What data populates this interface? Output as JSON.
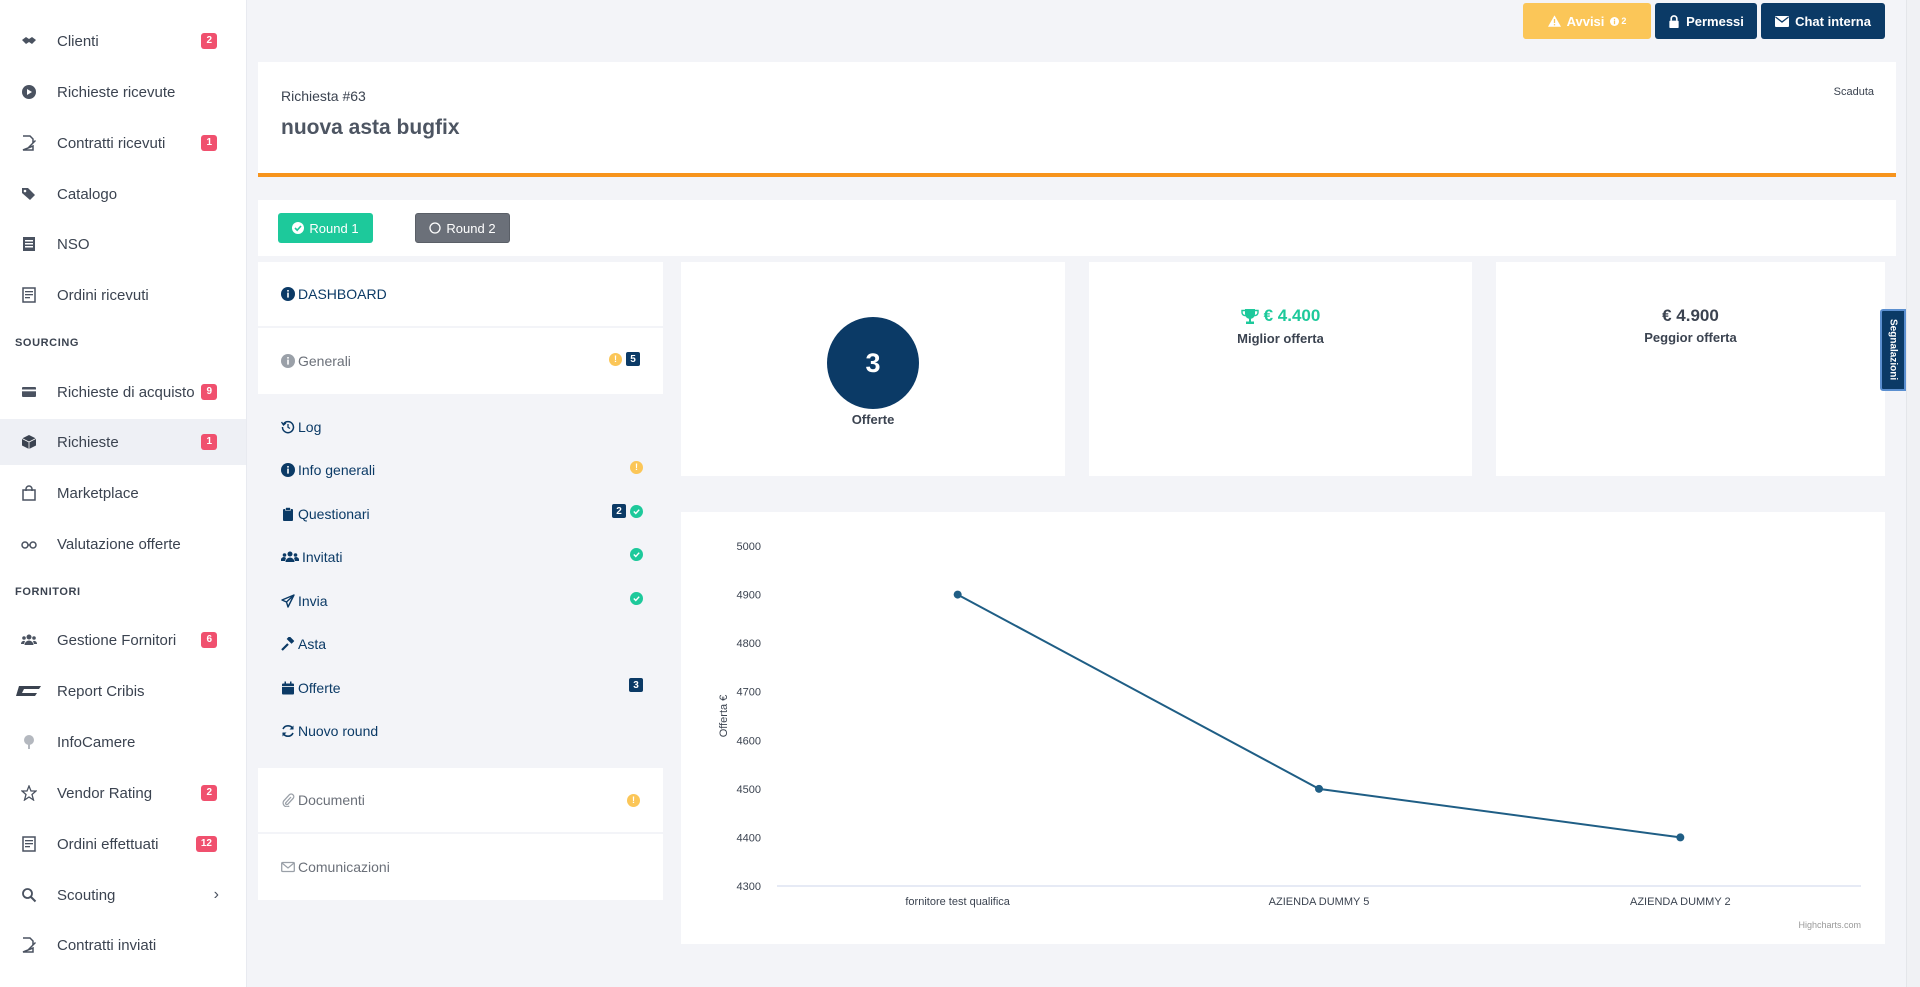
{
  "sidebar": {
    "items": [
      {
        "label": "Clienti",
        "icon": "handshake-icon",
        "badge": "2"
      },
      {
        "label": "Richieste ricevute",
        "icon": "play-circle-icon",
        "badge": ""
      },
      {
        "label": "Contratti ricevuti",
        "icon": "file-signature-icon",
        "badge": "1"
      },
      {
        "label": "Catalogo",
        "icon": "tags-icon",
        "badge": ""
      },
      {
        "label": "NSO",
        "icon": "list-icon",
        "badge": ""
      },
      {
        "label": "Ordini ricevuti",
        "icon": "receipt-icon",
        "badge": ""
      },
      {
        "label": "Richieste di acquisto",
        "icon": "credit-card-icon",
        "badge": "9"
      },
      {
        "label": "Richieste",
        "icon": "cube-icon",
        "badge": "1"
      },
      {
        "label": "Marketplace",
        "icon": "shopping-bag-icon",
        "badge": ""
      },
      {
        "label": "Valutazione offerte",
        "icon": "glasses-icon",
        "badge": ""
      },
      {
        "label": "Gestione Fornitori",
        "icon": "users-icon",
        "badge": "6"
      },
      {
        "label": "Report Cribis",
        "icon": "cribis-logo-icon",
        "badge": ""
      },
      {
        "label": "InfoCamere",
        "icon": "tree-icon",
        "badge": ""
      },
      {
        "label": "Vendor Rating",
        "icon": "star-icon",
        "badge": "2"
      },
      {
        "label": "Ordini effettuati",
        "icon": "receipt-icon",
        "badge": "12"
      },
      {
        "label": "Scouting",
        "icon": "search-icon",
        "badge": ""
      },
      {
        "label": "Contratti inviati",
        "icon": "file-signature-icon",
        "badge": ""
      }
    ],
    "sections": [
      "SOURCING",
      "FORNITORI"
    ]
  },
  "topbar": {
    "avvisi_label": "Avvisi",
    "avvisi_count": "2",
    "permessi_label": "Permessi",
    "chat_label": "Chat interna"
  },
  "header": {
    "request_number": "Richiesta #63",
    "title": "nuova asta bugfix",
    "status": "Scaduta"
  },
  "rounds": {
    "round1": "Round 1",
    "round2": "Round 2"
  },
  "leftpanel": {
    "dashboard": "DASHBOARD",
    "generali": "Generali",
    "generali_badge": "5",
    "items": [
      {
        "label": "Log"
      },
      {
        "label": "Info generali"
      },
      {
        "label": "Questionari",
        "badge": "2"
      },
      {
        "label": "Invitati"
      },
      {
        "label": "Invia"
      },
      {
        "label": "Asta"
      },
      {
        "label": "Offerte",
        "badge": "3"
      },
      {
        "label": "Nuovo round"
      }
    ],
    "documenti": "Documenti",
    "comunicazioni": "Comunicazioni"
  },
  "stats": {
    "offers_count": "3",
    "offers_label": "Offerte",
    "best_value": "€ 4.400",
    "best_label": "Miglior offerta",
    "worst_value": "€ 4.900",
    "worst_label": "Peggior offerta"
  },
  "chart_data": {
    "type": "line",
    "categories": [
      "fornitore test qualifica",
      "AZIENDA DUMMY 5",
      "AZIENDA DUMMY 2"
    ],
    "values": [
      4900,
      4500,
      4400
    ],
    "ylabel": "Offerta €",
    "ylim": [
      4300,
      5000
    ],
    "yticks": [
      4300,
      4400,
      4500,
      4600,
      4700,
      4800,
      4900,
      5000
    ],
    "credits": "Highcharts.com",
    "color": "#1f5e85"
  },
  "segnalazioni": "Segnalazioni",
  "colors": {
    "primary": "#0b3a66",
    "success": "#1dc99b",
    "warning": "#fbc658",
    "danger": "#f0506e",
    "accent": "#f7941d"
  }
}
